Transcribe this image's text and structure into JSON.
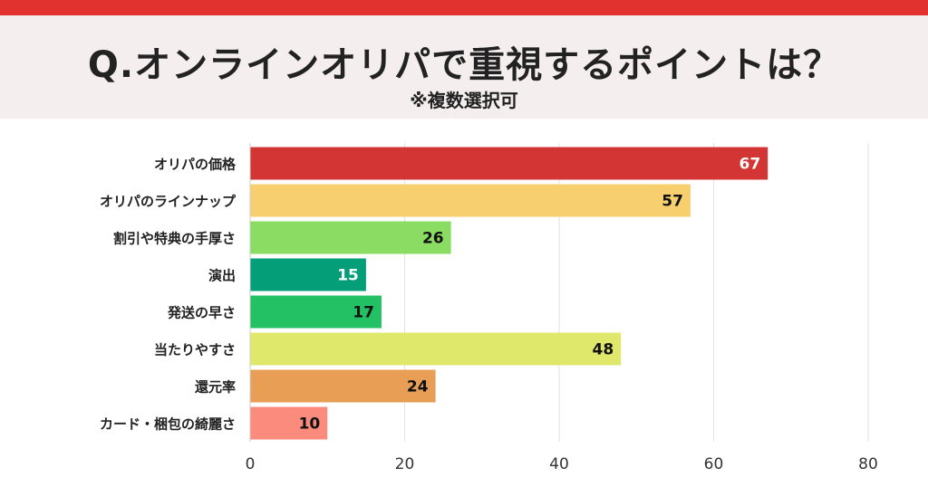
{
  "header": {
    "title": "Q.オンラインオリパで重視するポイントは？",
    "subtitle": "※複数選択可"
  },
  "colors": {
    "top_bar": "#e2322f",
    "header_bg": "#f4eeee"
  },
  "chart_data": {
    "type": "bar",
    "orientation": "horizontal",
    "categories": [
      "オリパの価格",
      "オリパのラインナップ",
      "割引や特典の手厚さ",
      "演出",
      "発送の早さ",
      "当たりやすさ",
      "還元率",
      "カード・梱包の綺麗さ"
    ],
    "values": [
      67,
      57,
      26,
      15,
      17,
      48,
      24,
      10
    ],
    "bar_colors": [
      "#d33434",
      "#f7cf6f",
      "#8bdc62",
      "#049e78",
      "#24c064",
      "#e0e86c",
      "#e89e55",
      "#fa8b7d"
    ],
    "value_label_colors": [
      "#ffffff",
      "#111111",
      "#111111",
      "#ffffff",
      "#111111",
      "#111111",
      "#111111",
      "#111111"
    ],
    "xlim": [
      0,
      80
    ],
    "x_ticks": [
      0,
      20,
      40,
      60,
      80
    ],
    "grid": true
  }
}
